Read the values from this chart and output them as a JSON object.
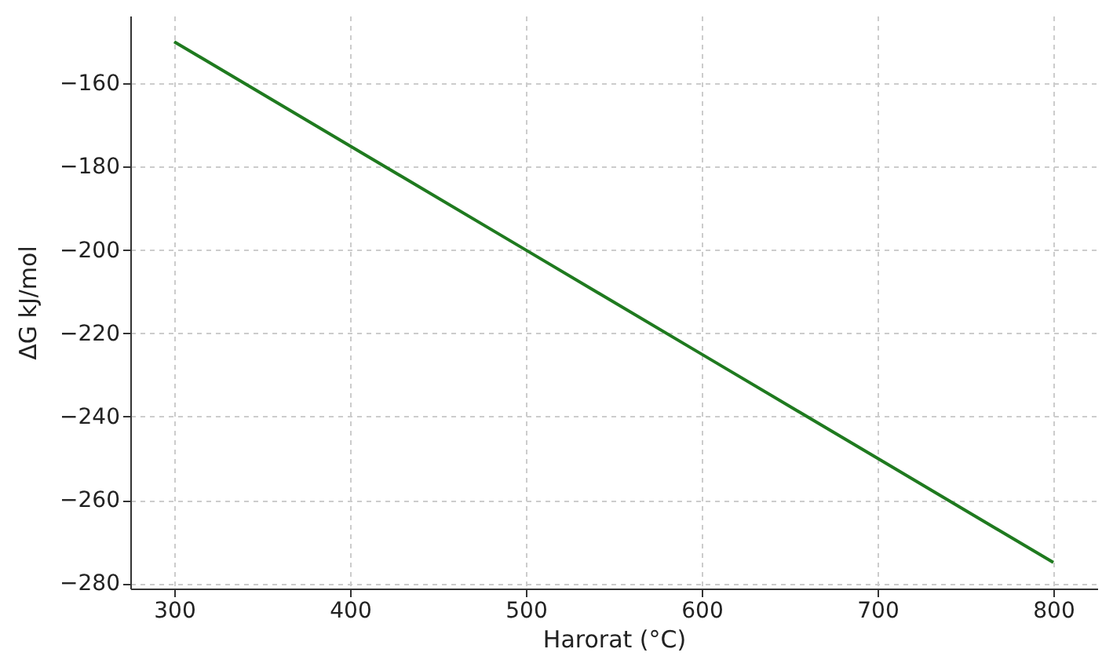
{
  "chart_data": {
    "type": "line",
    "xlabel": "Harorat (°C)",
    "ylabel": "ΔG kJ/mol",
    "x": [
      300,
      400,
      500,
      600,
      700,
      800
    ],
    "series": [
      {
        "color": "#1f7a1f",
        "values": [
          -150,
          -175,
          -200,
          -225,
          -250,
          -275
        ]
      }
    ],
    "xlim": [
      275,
      825
    ],
    "ylim": [
      -281.25,
      -143.75
    ],
    "xticks": [
      300,
      400,
      500,
      600,
      700,
      800
    ],
    "yticks": [
      -280,
      -260,
      -240,
      -220,
      -200,
      -180,
      -160
    ],
    "grid": true,
    "marker": "none",
    "line_style": "solid"
  }
}
